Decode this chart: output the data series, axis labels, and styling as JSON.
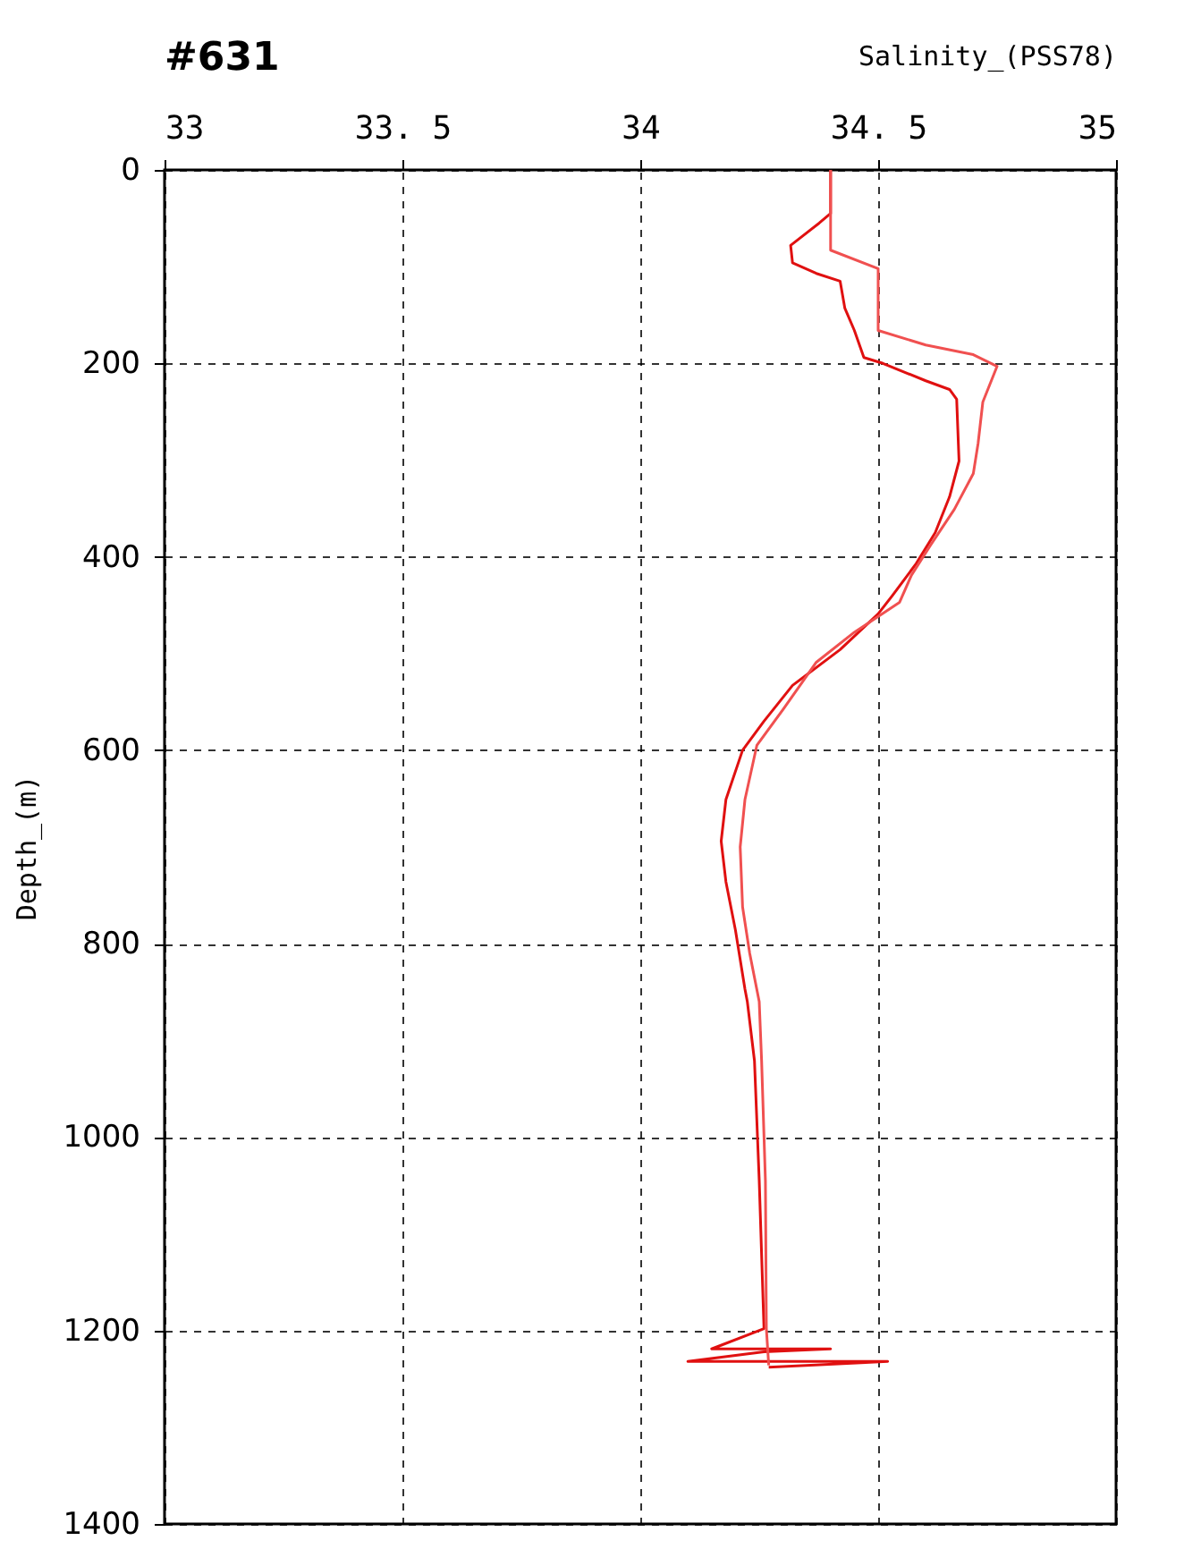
{
  "chart_data": {
    "type": "line",
    "title": "#631",
    "xlabel": "Salinity_(PSS78)",
    "ylabel": "Depth_(m)",
    "xlim": [
      33,
      35
    ],
    "xticks": [
      33,
      {
        "value": 33.5,
        "label": "33. 5"
      },
      34,
      {
        "value": 34.5,
        "label": "34. 5"
      },
      35
    ],
    "ylim": [
      1400,
      0
    ],
    "yticks": [
      0,
      200,
      400,
      600,
      800,
      1000,
      1200,
      1400
    ],
    "grid": true,
    "series": [
      {
        "color": "#e01010",
        "x": [
          34.4,
          34.4,
          34.376,
          34.316,
          34.32,
          34.37,
          34.42,
          34.43,
          34.45,
          34.47,
          34.51,
          34.6,
          34.65,
          34.665,
          34.67,
          34.65,
          34.62,
          34.58,
          34.53,
          34.5,
          34.42,
          34.32,
          34.26,
          34.215,
          34.18,
          34.17,
          34.18,
          34.2,
          34.22,
          34.225,
          34.24,
          34.25,
          34.26,
          34.15,
          34.4,
          34.26,
          34.1,
          34.52,
          34.27
        ],
        "values": [
          0,
          45,
          55,
          78,
          96,
          107,
          115,
          143,
          166,
          194,
          200,
          218,
          227,
          237,
          301,
          338,
          375,
          407,
          440,
          459,
          496,
          533,
          570,
          600,
          651,
          694,
          736,
          786,
          847,
          860,
          921,
          1045,
          1198,
          1219,
          1219,
          1222,
          1232,
          1232,
          1238
        ]
      },
      {
        "color": "#f05050",
        "x": [
          34.4,
          34.4,
          34.5,
          34.5,
          34.5,
          34.6,
          34.7,
          34.75,
          34.72,
          34.71,
          34.7,
          34.66,
          34.61,
          34.57,
          34.545,
          34.45,
          34.37,
          34.3,
          34.245,
          34.22,
          34.21,
          34.215,
          34.23,
          34.25,
          34.255,
          34.263,
          34.265,
          34.27
        ],
        "values": [
          0,
          83,
          102,
          136,
          166,
          181,
          191,
          203,
          240,
          283,
          314,
          351,
          388,
          419,
          447,
          478,
          509,
          558,
          595,
          651,
          700,
          762,
          810,
          860,
          921,
          1045,
          1198,
          1236
        ]
      }
    ]
  }
}
